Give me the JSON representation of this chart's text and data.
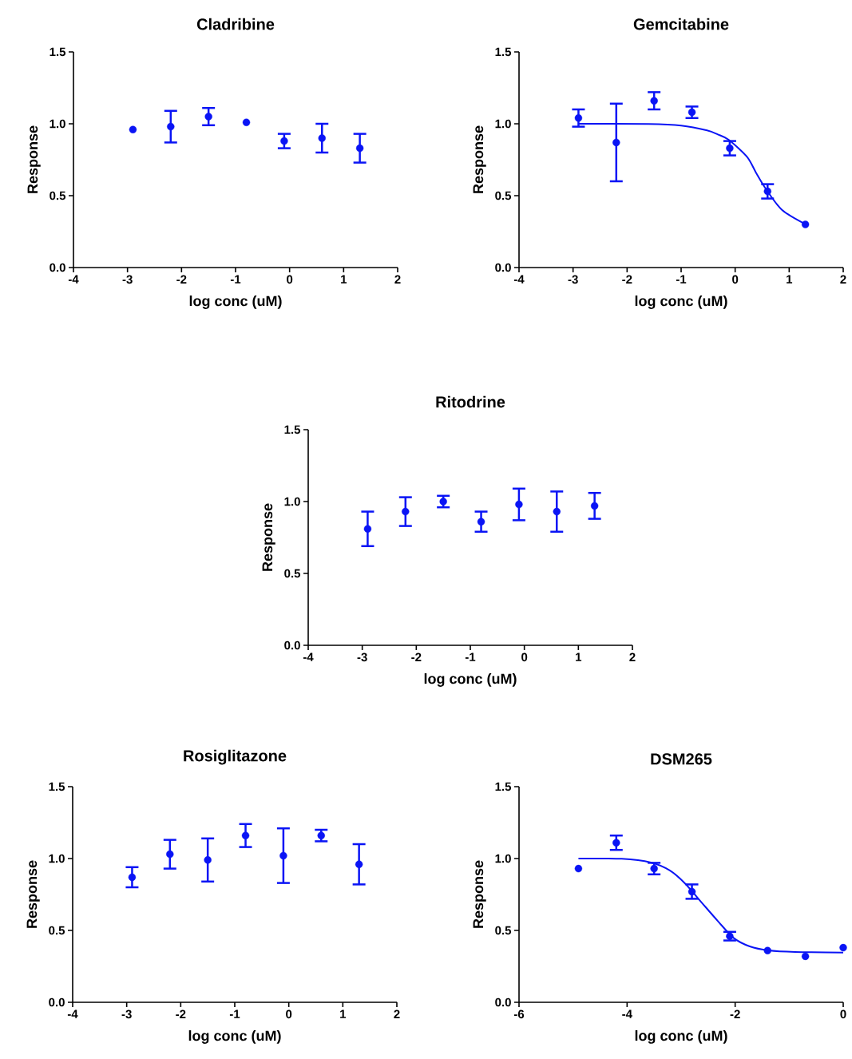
{
  "chart_data": [
    {
      "type": "scatter",
      "title": "Cladribine",
      "xlabel": "log conc  (uM)",
      "ylabel": "Response",
      "xlim": [
        -4,
        2
      ],
      "xticks": [
        -4,
        -3,
        -2,
        -1,
        0,
        1,
        2
      ],
      "ylim": [
        0,
        1.5
      ],
      "yticks": [
        {
          "value": 0,
          "label": "0.0"
        },
        {
          "value": 0.5,
          "label": "0.5"
        },
        {
          "value": 1,
          "label": "1.0"
        },
        {
          "value": 1.5,
          "label": "1.5"
        }
      ],
      "series": [
        {
          "marker": "circle",
          "color": "#0a14f5",
          "x": [
            -2.9,
            -2.2,
            -1.5,
            -0.8,
            -0.1,
            0.6,
            1.3
          ],
          "values": [
            0.96,
            0.98,
            1.05,
            1.01,
            0.88,
            0.9,
            0.83
          ],
          "errors": [
            null,
            0.11,
            0.06,
            null,
            0.05,
            0.1,
            0.1
          ]
        }
      ]
    },
    {
      "type": "scatter",
      "title": "Gemcitabine",
      "xlabel": "log conc  (uM)",
      "ylabel": "Response",
      "xlim": [
        -4,
        2
      ],
      "xticks": [
        -4,
        -3,
        -2,
        -1,
        0,
        1,
        2
      ],
      "ylim": [
        0,
        1.5
      ],
      "yticks": [
        {
          "value": 0,
          "label": "0.0"
        },
        {
          "value": 0.5,
          "label": "0.5"
        },
        {
          "value": 1,
          "label": "1.0"
        },
        {
          "value": 1.5,
          "label": "1.5"
        }
      ],
      "series": [
        {
          "marker": "circle",
          "color": "#0a14f5",
          "x": [
            -2.9,
            -2.2,
            -1.5,
            -0.8,
            -0.1,
            0.6,
            1.3
          ],
          "values": [
            1.04,
            0.87,
            1.16,
            1.08,
            0.83,
            0.53,
            0.3
          ],
          "errors": [
            0.06,
            0.27,
            0.06,
            0.04,
            0.05,
            0.05,
            null
          ]
        },
        {
          "type": "line",
          "marker": "none",
          "color": "#0a14f5",
          "x": [
            -2.9,
            -1.6,
            -1.0,
            -0.52,
            -0.32,
            -0.12,
            0.22,
            0.39,
            0.57,
            0.87,
            1.31
          ],
          "values": [
            1.0,
            0.998,
            0.987,
            0.954,
            0.926,
            0.889,
            0.77,
            0.657,
            0.546,
            0.4,
            0.3
          ]
        }
      ]
    },
    {
      "type": "scatter",
      "title": "Ritodrine",
      "xlabel": "log conc  (uM)",
      "ylabel": "Response",
      "xlim": [
        -4,
        2
      ],
      "xticks": [
        -4,
        -3,
        -2,
        -1,
        0,
        1,
        2
      ],
      "ylim": [
        0,
        1.5
      ],
      "yticks": [
        {
          "value": 0,
          "label": "0.0"
        },
        {
          "value": 0.5,
          "label": "0.5"
        },
        {
          "value": 1,
          "label": "1.0"
        },
        {
          "value": 1.5,
          "label": "1.5"
        }
      ],
      "series": [
        {
          "marker": "circle",
          "color": "#0a14f5",
          "x": [
            -2.9,
            -2.2,
            -1.5,
            -0.8,
            -0.1,
            0.6,
            1.3
          ],
          "values": [
            0.81,
            0.93,
            1.0,
            0.86,
            0.98,
            0.93,
            0.97
          ],
          "errors": [
            0.12,
            0.1,
            0.04,
            0.07,
            0.11,
            0.14,
            0.09
          ]
        }
      ]
    },
    {
      "type": "scatter",
      "title": "Rosiglitazone",
      "xlabel": "log conc  (uM)",
      "ylabel": "Response",
      "xlim": [
        -4,
        2
      ],
      "xticks": [
        -4,
        -3,
        -2,
        -1,
        0,
        1,
        2
      ],
      "ylim": [
        0,
        1.5
      ],
      "yticks": [
        {
          "value": 0,
          "label": "0.0"
        },
        {
          "value": 0.5,
          "label": "0.5"
        },
        {
          "value": 1,
          "label": "1.0"
        },
        {
          "value": 1.5,
          "label": "1.5"
        }
      ],
      "series": [
        {
          "marker": "circle",
          "color": "#0a14f5",
          "x": [
            -2.9,
            -2.2,
            -1.5,
            -0.8,
            -0.1,
            0.6,
            1.3
          ],
          "values": [
            0.87,
            1.03,
            0.99,
            1.16,
            1.02,
            1.16,
            0.96
          ],
          "errors": [
            0.07,
            0.1,
            0.15,
            0.08,
            0.19,
            0.04,
            0.14
          ]
        }
      ]
    },
    {
      "type": "scatter",
      "title": "DSM265",
      "xlabel": "log conc  (uM)",
      "ylabel": "Response",
      "xlim": [
        -6,
        0
      ],
      "xticks": [
        -6,
        -4,
        -2,
        0
      ],
      "ylim": [
        0,
        1.5
      ],
      "yticks": [
        {
          "value": 0,
          "label": "0.0"
        },
        {
          "value": 0.5,
          "label": "0.5"
        },
        {
          "value": 1,
          "label": "1.0"
        },
        {
          "value": 1.5,
          "label": "1.5"
        }
      ],
      "series": [
        {
          "marker": "circle",
          "color": "#0a14f5",
          "x": [
            -4.9,
            -4.2,
            -3.5,
            -2.8,
            -2.1,
            -1.4,
            -0.7,
            0.0
          ],
          "values": [
            0.93,
            1.11,
            0.93,
            0.77,
            0.46,
            0.36,
            0.32,
            0.38
          ],
          "errors": [
            null,
            0.05,
            0.04,
            0.05,
            0.03,
            null,
            null,
            null
          ]
        },
        {
          "type": "line",
          "marker": "none",
          "color": "#0a14f5",
          "x": [
            -4.9,
            -4.1,
            -3.56,
            -3.21,
            -2.92,
            -2.62,
            -2.32,
            -2.03,
            -1.73,
            -1.38,
            -0.89,
            0.0
          ],
          "values": [
            1.0,
            0.998,
            0.972,
            0.917,
            0.824,
            0.694,
            0.565,
            0.448,
            0.389,
            0.361,
            0.35,
            0.346
          ]
        }
      ]
    }
  ]
}
